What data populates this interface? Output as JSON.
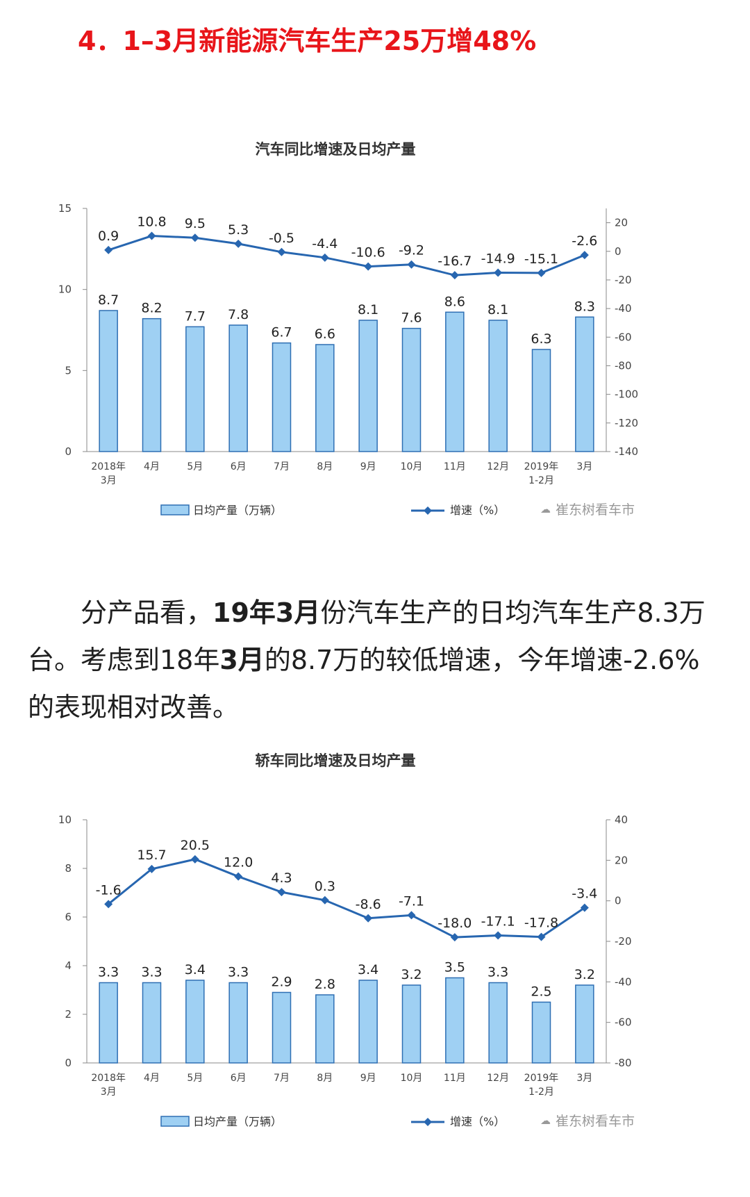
{
  "headline": "4．1–3月新能源汽车生产25万增48%",
  "paragraph": {
    "p1": "分产品看，",
    "p2": "19年3月",
    "p3": "份汽车生产的日均汽车生产8.3万台。考虑到18年",
    "p4": "3月",
    "p5": "的8.7万的较低增速，今年增速-2.6%的表现相对改善。"
  },
  "watermark": "崔东树看车市",
  "colors": {
    "headline": "#e8151a",
    "bar_fill": "#9fd0f3",
    "bar_stroke": "#2e6fb3",
    "line": "#2766b0"
  },
  "chart_data": [
    {
      "type": "bar+line",
      "title": "汽车同比增速及日均产量",
      "categories": [
        [
          "2018年",
          "3月"
        ],
        [
          "4月"
        ],
        [
          "5月"
        ],
        [
          "6月"
        ],
        [
          "7月"
        ],
        [
          "8月"
        ],
        [
          "9月"
        ],
        [
          "10月"
        ],
        [
          "11月"
        ],
        [
          "12月"
        ],
        [
          "2019年",
          "1-2月"
        ],
        [
          "3月"
        ]
      ],
      "series": [
        {
          "name": "日均产量（万辆）",
          "kind": "bar",
          "axis": "left",
          "values": [
            8.7,
            8.2,
            7.7,
            7.8,
            6.7,
            6.6,
            8.1,
            7.6,
            8.6,
            8.1,
            6.3,
            8.3
          ]
        },
        {
          "name": "增速（%）",
          "kind": "line",
          "axis": "right",
          "values": [
            0.9,
            10.8,
            9.5,
            5.3,
            -0.5,
            -4.4,
            -10.6,
            -9.2,
            -16.7,
            -14.9,
            -15.1,
            -2.6
          ]
        }
      ],
      "y_left": {
        "min": 0,
        "max": 15,
        "ticks": [
          0,
          5,
          10,
          15
        ]
      },
      "y_right": {
        "min": -140,
        "max": 30,
        "ticks": [
          20,
          0,
          -20,
          -40,
          -60,
          -80,
          -100,
          -120,
          -140
        ]
      },
      "grid": false,
      "legend": "bottom"
    },
    {
      "type": "bar+line",
      "title": "轿车同比增速及日均产量",
      "categories": [
        [
          "2018年",
          "3月"
        ],
        [
          "4月"
        ],
        [
          "5月"
        ],
        [
          "6月"
        ],
        [
          "7月"
        ],
        [
          "8月"
        ],
        [
          "9月"
        ],
        [
          "10月"
        ],
        [
          "11月"
        ],
        [
          "12月"
        ],
        [
          "2019年",
          "1-2月"
        ],
        [
          "3月"
        ]
      ],
      "series": [
        {
          "name": "日均产量（万辆）",
          "kind": "bar",
          "axis": "left",
          "values": [
            3.3,
            3.3,
            3.4,
            3.3,
            2.9,
            2.8,
            3.4,
            3.2,
            3.5,
            3.3,
            2.5,
            3.2
          ]
        },
        {
          "name": "增速（%）",
          "kind": "line",
          "axis": "right",
          "values": [
            -1.6,
            15.7,
            20.5,
            12.0,
            4.3,
            0.3,
            -8.6,
            -7.1,
            -18.0,
            -17.1,
            -17.8,
            -3.4
          ]
        }
      ],
      "y_left": {
        "min": 0,
        "max": 10,
        "ticks": [
          0,
          2,
          4,
          6,
          8,
          10
        ]
      },
      "y_right": {
        "min": -80,
        "max": 40,
        "ticks": [
          40,
          20,
          0,
          -20,
          -40,
          -60,
          -80
        ]
      },
      "grid": false,
      "legend": "bottom"
    }
  ]
}
